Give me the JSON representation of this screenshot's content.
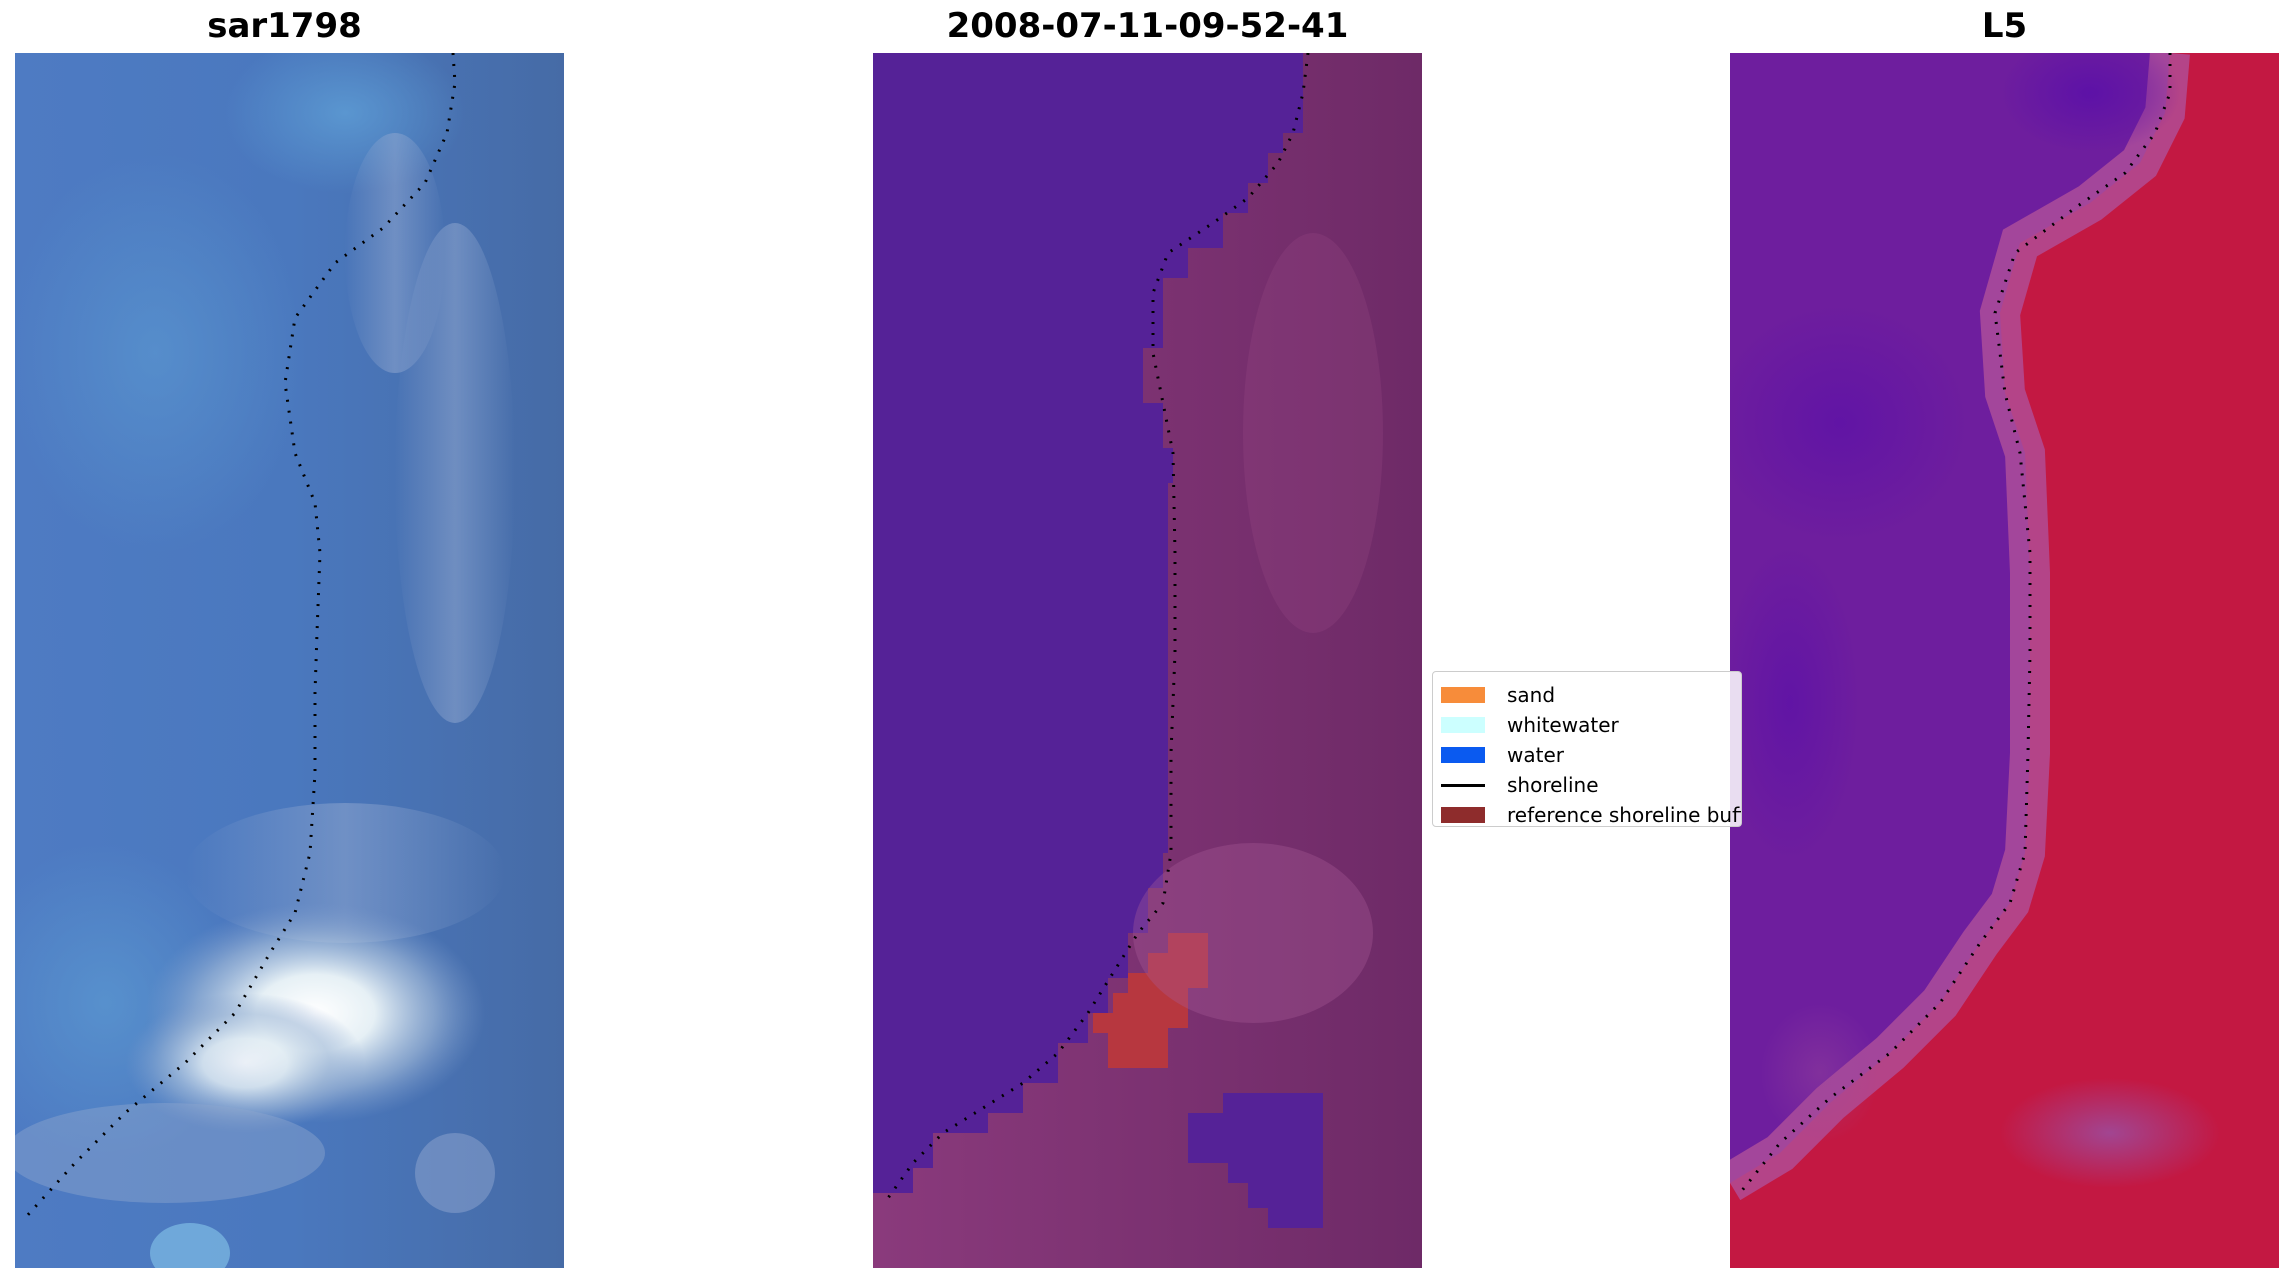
{
  "panels": [
    {
      "title": "sar1798",
      "kind": "rgb"
    },
    {
      "title": "2008-07-11-09-52-41",
      "kind": "classified"
    },
    {
      "title": "L5",
      "kind": "index"
    }
  ],
  "legend": {
    "items": [
      {
        "label": "sand",
        "color": "#F78C3A",
        "type": "patch"
      },
      {
        "label": "whitewater",
        "color": "#CCFFFF",
        "type": "patch"
      },
      {
        "label": "water",
        "color": "#0A5AF0",
        "type": "patch"
      },
      {
        "label": "shoreline",
        "color": "#000000",
        "type": "line"
      },
      {
        "label": "reference shoreline buffer",
        "color": "#8E2C2C",
        "type": "patch"
      }
    ]
  },
  "colors": {
    "water_class": "#552297",
    "land_class": "#7A2F6E",
    "buffer_class": "#B7373F",
    "rgb_blue": "#4C78BA",
    "index_low": "#6A1A9E",
    "index_high": "#C31842"
  }
}
